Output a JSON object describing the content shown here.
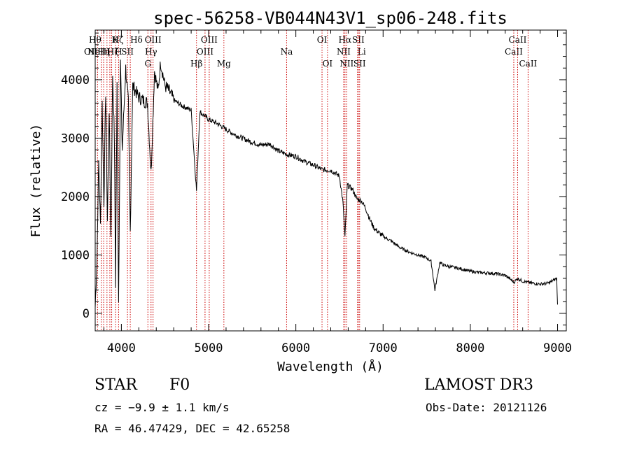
{
  "chart_data": {
    "type": "line",
    "title": "spec-56258-VB044N43V1_sp06-248.fits",
    "xlabel": "Wavelength (Å)",
    "ylabel": "Flux (relative)",
    "xlim": [
      3700,
      9100
    ],
    "ylim": [
      -300,
      4850
    ],
    "x_ticks": [
      4000,
      5000,
      6000,
      7000,
      8000,
      9000
    ],
    "y_ticks": [
      0,
      1000,
      2000,
      3000,
      4000
    ],
    "series": [
      {
        "name": "spectrum",
        "x": [
          3700,
          3720,
          3740,
          3760,
          3780,
          3800,
          3820,
          3840,
          3860,
          3880,
          3900,
          3920,
          3933,
          3950,
          3968,
          3990,
          4010,
          4050,
          4080,
          4102,
          4130,
          4200,
          4250,
          4300,
          4340,
          4380,
          4420,
          4450,
          4500,
          4550,
          4600,
          4700,
          4800,
          4861,
          4900,
          5000,
          5100,
          5200,
          5300,
          5400,
          5500,
          5600,
          5700,
          5800,
          5900,
          6000,
          6100,
          6200,
          6300,
          6400,
          6500,
          6540,
          6563,
          6590,
          6650,
          6700,
          6750,
          6800,
          6850,
          6900,
          7000,
          7100,
          7200,
          7300,
          7400,
          7500,
          7550,
          7594,
          7650,
          7700,
          7800,
          7900,
          8000,
          8100,
          8200,
          8300,
          8400,
          8480,
          8500,
          8540,
          8600,
          8700,
          8800,
          8900,
          8990,
          9000
        ],
        "y": [
          100,
          900,
          2600,
          1500,
          3600,
          1900,
          3800,
          1600,
          3500,
          1300,
          4100,
          3000,
          500,
          3900,
          200,
          4300,
          2800,
          4200,
          3600,
          1400,
          3900,
          3700,
          3650,
          3600,
          2400,
          4150,
          3800,
          4300,
          3900,
          3800,
          3650,
          3550,
          3480,
          2100,
          3450,
          3320,
          3250,
          3150,
          3060,
          2990,
          2930,
          2880,
          2900,
          2780,
          2720,
          2690,
          2600,
          2540,
          2460,
          2450,
          2350,
          1900,
          1300,
          2200,
          2120,
          1960,
          1930,
          1800,
          1600,
          1450,
          1320,
          1230,
          1120,
          1050,
          1000,
          950,
          890,
          400,
          870,
          820,
          790,
          760,
          720,
          700,
          690,
          680,
          650,
          560,
          530,
          600,
          550,
          520,
          500,
          520,
          600,
          150
        ]
      }
    ],
    "lines": [
      {
        "x": 3727,
        "label": "OII",
        "row": 2,
        "anchor": "end"
      },
      {
        "x": 3770,
        "label": "Hθ",
        "row": 1,
        "anchor": "end"
      },
      {
        "x": 3797,
        "label": "Hη",
        "row": 2,
        "anchor": "middle"
      },
      {
        "x": 3835,
        "label": "Hζ",
        "row": 2,
        "anchor": "start"
      },
      {
        "x": 3868,
        "label": "NeIII",
        "row": 2,
        "anchor": "end"
      },
      {
        "x": 3889,
        "label": "Hζ",
        "row": 1,
        "anchor": "start"
      },
      {
        "x": 3934,
        "label": "K",
        "row": 1,
        "anchor": "middle"
      },
      {
        "x": 3968,
        "label": "H",
        "row": 2,
        "anchor": "middle"
      },
      {
        "x": 4070,
        "label": "SII",
        "row": 2,
        "anchor": "middle"
      },
      {
        "x": 4102,
        "label": "Hδ",
        "row": 1,
        "anchor": "start"
      },
      {
        "x": 4304,
        "label": "G",
        "row": 3,
        "anchor": "middle"
      },
      {
        "x": 4340,
        "label": "Hγ",
        "row": 2,
        "anchor": "middle"
      },
      {
        "x": 4363,
        "label": "OIII",
        "row": 1,
        "anchor": "middle"
      },
      {
        "x": 4861,
        "label": "Hβ",
        "row": 3,
        "anchor": "middle"
      },
      {
        "x": 4959,
        "label": "OIII",
        "row": 2,
        "anchor": "middle"
      },
      {
        "x": 5007,
        "label": "OIII",
        "row": 1,
        "anchor": "middle"
      },
      {
        "x": 5175,
        "label": "Mg",
        "row": 3,
        "anchor": "middle"
      },
      {
        "x": 5894,
        "label": "Na",
        "row": 2,
        "anchor": "middle"
      },
      {
        "x": 6300,
        "label": "OI",
        "row": 1,
        "anchor": "middle"
      },
      {
        "x": 6363,
        "label": "OI",
        "row": 3,
        "anchor": "middle"
      },
      {
        "x": 6548,
        "label": "NII",
        "row": 2,
        "anchor": "middle"
      },
      {
        "x": 6563,
        "label": "Hα",
        "row": 1,
        "anchor": "middle"
      },
      {
        "x": 6583,
        "label": "NII",
        "row": 3,
        "anchor": "middle"
      },
      {
        "x": 6708,
        "label": "Li",
        "row": 2,
        "anchor": "start"
      },
      {
        "x": 6716,
        "label": "SII",
        "row": 1,
        "anchor": "middle"
      },
      {
        "x": 6731,
        "label": "SII",
        "row": 3,
        "anchor": "middle"
      },
      {
        "x": 8498,
        "label": "CaII",
        "row": 2,
        "anchor": "middle"
      },
      {
        "x": 8542,
        "label": "CaII",
        "row": 1,
        "anchor": "middle"
      },
      {
        "x": 8662,
        "label": "CaII",
        "row": 3,
        "anchor": "middle"
      }
    ],
    "line_color": "#cc0000"
  },
  "info": {
    "object_class": "STAR",
    "subclass": "F0",
    "survey": "LAMOST DR3",
    "redshift": "cz = −9.9 ± 1.1 km/s",
    "obs_date": "Obs-Date: 20121126",
    "coords": "RA =  46.47429, DEC =  42.65258"
  }
}
